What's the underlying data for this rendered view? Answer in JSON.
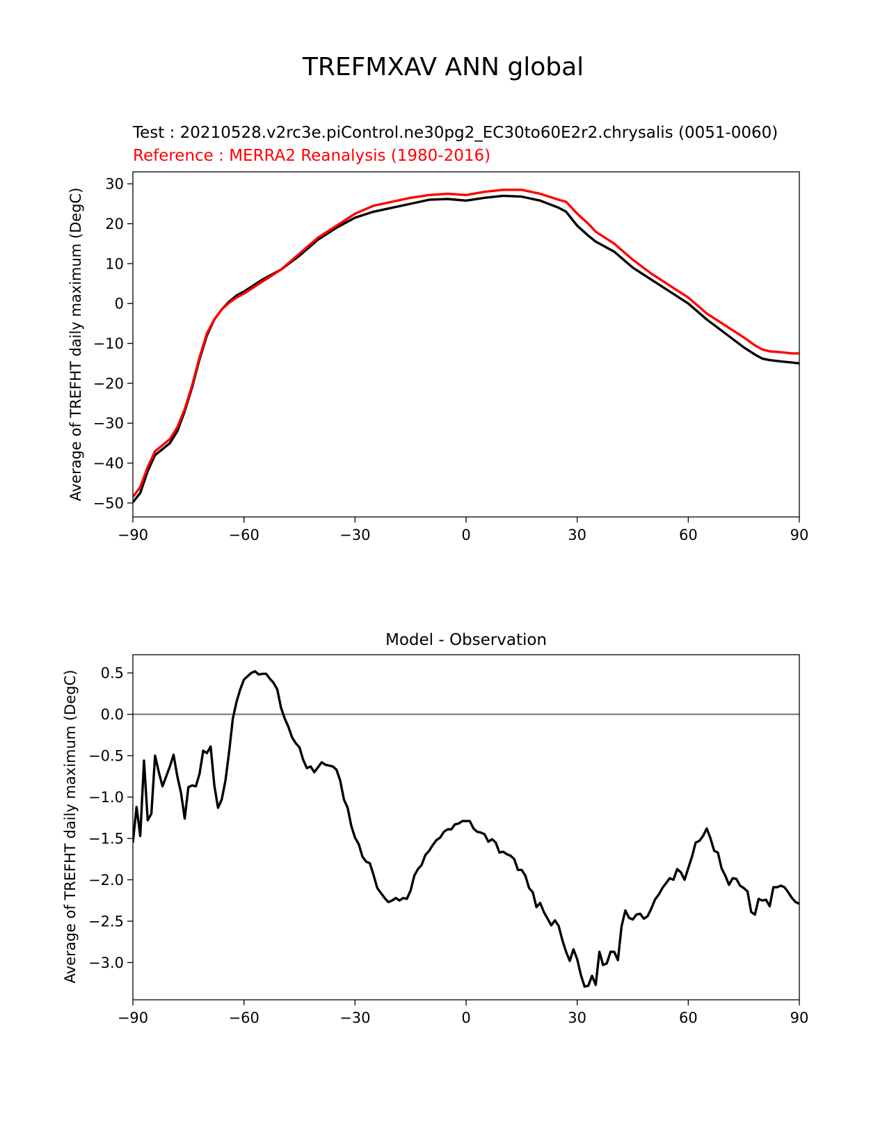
{
  "figure_title": "TREFMXAV ANN global",
  "chart_data": [
    {
      "type": "line",
      "test_label": "Test : 20210528.v2rc3e.piControl.ne30pg2_EC30to60E2r2.chrysalis (0051-0060)",
      "reference_label": "Reference : MERRA2 Reanalysis (1980-2016)",
      "ylabel": "Average of TREFHT daily maximum (DegC)",
      "xlabel": "",
      "xlim": [
        -90,
        90
      ],
      "ylim": [
        -53.5,
        33
      ],
      "xticks": [
        -90,
        -60,
        -30,
        0,
        30,
        60,
        90
      ],
      "xtick_labels": [
        "−90",
        "−60",
        "−30",
        "0",
        "30",
        "60",
        "90"
      ],
      "yticks": [
        -50,
        -40,
        -30,
        -20,
        -10,
        0,
        10,
        20,
        30
      ],
      "ytick_labels": [
        "−50",
        "−40",
        "−30",
        "−20",
        "−10",
        "0",
        "10",
        "20",
        "30"
      ],
      "series": [
        {
          "name": "Test",
          "color": "#000000",
          "x": [
            -90,
            -88,
            -86,
            -84,
            -82,
            -80,
            -78,
            -76,
            -74,
            -72,
            -70,
            -68,
            -66,
            -64,
            -62,
            -60,
            -55,
            -50,
            -45,
            -40,
            -35,
            -30,
            -25,
            -20,
            -15,
            -10,
            -5,
            0,
            5,
            10,
            15,
            20,
            25,
            27,
            30,
            33,
            35,
            40,
            45,
            50,
            55,
            60,
            65,
            70,
            75,
            78,
            80,
            82,
            85,
            88,
            90
          ],
          "values": [
            -49.8,
            -47.5,
            -42,
            -38,
            -36.5,
            -35,
            -32,
            -27,
            -21,
            -14,
            -8,
            -4,
            -1.5,
            0.5,
            2,
            3,
            6,
            8.5,
            12,
            16,
            19,
            21.5,
            23,
            24,
            25,
            26,
            26.2,
            25.8,
            26.5,
            27,
            26.8,
            25.8,
            24,
            23,
            19.5,
            17,
            15.5,
            13,
            9,
            6,
            3,
            0,
            -4,
            -7.5,
            -11,
            -12.8,
            -13.8,
            -14.2,
            -14.5,
            -14.8,
            -15
          ]
        },
        {
          "name": "Reference",
          "color": "#ff0000",
          "x": [
            -90,
            -88,
            -86,
            -84,
            -82,
            -80,
            -78,
            -76,
            -74,
            -72,
            -70,
            -68,
            -66,
            -64,
            -62,
            -60,
            -55,
            -50,
            -45,
            -40,
            -35,
            -30,
            -25,
            -20,
            -15,
            -10,
            -5,
            0,
            5,
            10,
            15,
            20,
            25,
            27,
            30,
            33,
            35,
            40,
            45,
            50,
            55,
            60,
            65,
            70,
            75,
            78,
            80,
            82,
            85,
            88,
            90
          ],
          "values": [
            -48.5,
            -46,
            -41,
            -37,
            -35.5,
            -34,
            -31,
            -26.5,
            -20.5,
            -13.5,
            -7.5,
            -4,
            -1.5,
            0.2,
            1.5,
            2.5,
            5.5,
            8.5,
            12.5,
            16.5,
            19.5,
            22.5,
            24.5,
            25.5,
            26.5,
            27.2,
            27.5,
            27.2,
            28,
            28.5,
            28.5,
            27.5,
            26,
            25.5,
            22.5,
            20,
            18,
            15,
            11,
            7.5,
            4.5,
            1.5,
            -2.5,
            -5.5,
            -8.5,
            -10.5,
            -11.5,
            -12,
            -12.2,
            -12.5,
            -12.5
          ]
        }
      ]
    },
    {
      "type": "line",
      "title": "Model - Observation",
      "ylabel": "Average of TREFHT daily maximum (DegC)",
      "xlabel": "",
      "xlim": [
        -90,
        90
      ],
      "ylim": [
        -3.45,
        0.72
      ],
      "xticks": [
        -90,
        -60,
        -30,
        0,
        30,
        60,
        90
      ],
      "xtick_labels": [
        "−90",
        "−60",
        "−30",
        "0",
        "30",
        "60",
        "90"
      ],
      "yticks": [
        0.5,
        0.0,
        -0.5,
        -1.0,
        -1.5,
        -2.0,
        -2.5,
        -3.0
      ],
      "ytick_labels": [
        "0.5",
        "0.0",
        "−0.5",
        "−1.0",
        "−1.5",
        "−2.0",
        "−2.5",
        "−3.0"
      ],
      "zero_line_color": "#808080",
      "series": [
        {
          "name": "Model - Observation",
          "color": "#000000",
          "x": [
            -90,
            -89,
            -88,
            -87,
            -86,
            -85,
            -84,
            -83,
            -82,
            -81,
            -80,
            -79,
            -78,
            -77,
            -76,
            -75,
            -74,
            -73,
            -72,
            -71,
            -70,
            -69,
            -68,
            -67,
            -66,
            -65,
            -64,
            -63,
            -62,
            -61,
            -60,
            -59,
            -58,
            -57,
            -56,
            -55,
            -54,
            -53,
            -52,
            -51,
            -50,
            -49,
            -48,
            -47,
            -46,
            -45,
            -44,
            -43,
            -42,
            -41,
            -40,
            -39,
            -38,
            -37,
            -36,
            -35,
            -34,
            -33,
            -32,
            -31,
            -30,
            -29,
            -28,
            -27,
            -26,
            -25,
            -24,
            -23,
            -22,
            -21,
            -20,
            -19,
            -18,
            -17,
            -16,
            -15,
            -14,
            -13,
            -12,
            -11,
            -10,
            -9,
            -8,
            -7,
            -6,
            -5,
            -4,
            -3,
            -2,
            -1,
            0,
            1,
            2,
            3,
            4,
            5,
            6,
            7,
            8,
            9,
            10,
            11,
            12,
            13,
            14,
            15,
            16,
            17,
            18,
            19,
            20,
            21,
            22,
            23,
            24,
            25,
            26,
            27,
            28,
            29,
            30,
            31,
            32,
            33,
            34,
            35,
            36,
            37,
            38,
            39,
            40,
            41,
            42,
            43,
            44,
            45,
            46,
            47,
            48,
            49,
            50,
            51,
            52,
            53,
            54,
            55,
            56,
            57,
            58,
            59,
            60,
            61,
            62,
            63,
            64,
            65,
            66,
            67,
            68,
            69,
            70,
            71,
            72,
            73,
            74,
            75,
            76,
            77,
            78,
            79,
            80,
            81,
            82,
            83,
            84,
            85,
            86,
            87,
            88,
            89,
            90
          ],
          "values": [
            -1.55,
            -1.12,
            -1.47,
            -0.56,
            -1.28,
            -1.2,
            -0.5,
            -0.7,
            -0.87,
            -0.75,
            -0.63,
            -0.49,
            -0.75,
            -0.95,
            -1.26,
            -0.88,
            -0.86,
            -0.87,
            -0.72,
            -0.44,
            -0.47,
            -0.39,
            -0.86,
            -1.13,
            -1.03,
            -0.8,
            -0.45,
            -0.05,
            0.15,
            0.3,
            0.42,
            0.46,
            0.5,
            0.52,
            0.48,
            0.49,
            0.49,
            0.43,
            0.38,
            0.3,
            0.08,
            -0.05,
            -0.15,
            -0.28,
            -0.35,
            -0.4,
            -0.55,
            -0.65,
            -0.63,
            -0.7,
            -0.64,
            -0.58,
            -0.61,
            -0.62,
            -0.63,
            -0.67,
            -0.8,
            -1.03,
            -1.13,
            -1.35,
            -1.49,
            -1.57,
            -1.72,
            -1.78,
            -1.8,
            -1.94,
            -2.1,
            -2.16,
            -2.22,
            -2.27,
            -2.25,
            -2.22,
            -2.25,
            -2.22,
            -2.23,
            -2.13,
            -1.95,
            -1.87,
            -1.82,
            -1.7,
            -1.65,
            -1.58,
            -1.52,
            -1.49,
            -1.42,
            -1.39,
            -1.39,
            -1.33,
            -1.32,
            -1.29,
            -1.29,
            -1.29,
            -1.38,
            -1.42,
            -1.43,
            -1.45,
            -1.54,
            -1.51,
            -1.55,
            -1.67,
            -1.66,
            -1.69,
            -1.71,
            -1.75,
            -1.88,
            -1.88,
            -1.95,
            -2.1,
            -2.15,
            -2.33,
            -2.28,
            -2.39,
            -2.47,
            -2.55,
            -2.49,
            -2.56,
            -2.73,
            -2.87,
            -2.98,
            -2.84,
            -2.96,
            -3.15,
            -3.29,
            -3.28,
            -3.16,
            -3.27,
            -2.87,
            -3.03,
            -3.01,
            -2.87,
            -2.87,
            -2.97,
            -2.56,
            -2.37,
            -2.46,
            -2.48,
            -2.42,
            -2.41,
            -2.47,
            -2.44,
            -2.35,
            -2.24,
            -2.18,
            -2.1,
            -2.04,
            -1.98,
            -2.0,
            -1.87,
            -1.91,
            -2.0,
            -1.86,
            -1.72,
            -1.55,
            -1.53,
            -1.47,
            -1.38,
            -1.5,
            -1.65,
            -1.67,
            -1.86,
            -1.95,
            -2.06,
            -1.98,
            -1.99,
            -2.07,
            -2.1,
            -2.14,
            -2.39,
            -2.42,
            -2.23,
            -2.25,
            -2.24,
            -2.32,
            -2.09,
            -2.09,
            -2.07,
            -2.09,
            -2.15,
            -2.22,
            -2.27,
            -2.29
          ]
        }
      ]
    }
  ]
}
